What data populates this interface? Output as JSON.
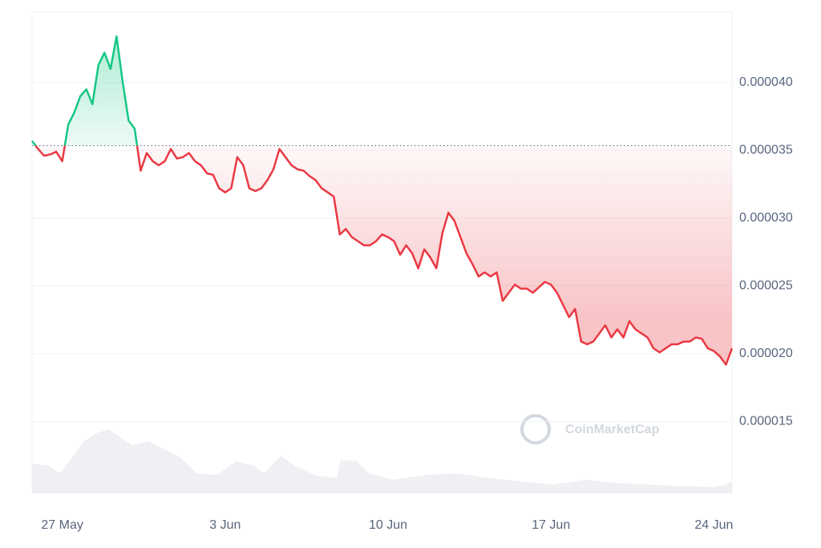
{
  "chart_data": {
    "type": "line",
    "watermark": "CoinMarketCap",
    "categories": [
      null,
      null,
      null,
      null,
      null,
      "27 May",
      null,
      null,
      null,
      null,
      null,
      null,
      null,
      null,
      null,
      null,
      null,
      null,
      null,
      null,
      null,
      null,
      null,
      null,
      null,
      null,
      null,
      null,
      null,
      null,
      null,
      null,
      "3 Jun",
      null,
      null,
      null,
      null,
      null,
      null,
      null,
      null,
      null,
      null,
      null,
      null,
      null,
      null,
      null,
      null,
      null,
      null,
      null,
      null,
      null,
      null,
      null,
      null,
      null,
      null,
      "10 Jun",
      null,
      null,
      null,
      null,
      null,
      null,
      null,
      null,
      null,
      null,
      null,
      null,
      null,
      null,
      null,
      null,
      null,
      null,
      null,
      null,
      null,
      null,
      null,
      null,
      null,
      null,
      "17 Jun",
      null,
      null,
      null,
      null,
      null,
      null,
      null,
      null,
      null,
      null,
      null,
      null,
      null,
      null,
      null,
      null,
      null,
      null,
      null,
      null,
      null,
      null,
      null,
      null,
      null,
      null,
      "24 Jun",
      null,
      null,
      null
    ],
    "values": [
      3.57e-05,
      3.51e-05,
      3.46e-05,
      3.47e-05,
      3.49e-05,
      3.42e-05,
      3.69e-05,
      3.78e-05,
      3.9e-05,
      3.95e-05,
      3.84e-05,
      4.13e-05,
      4.22e-05,
      4.1e-05,
      4.34e-05,
      4.01e-05,
      3.72e-05,
      3.66e-05,
      3.35e-05,
      3.48e-05,
      3.42e-05,
      3.39e-05,
      3.42e-05,
      3.51e-05,
      3.44e-05,
      3.45e-05,
      3.48e-05,
      3.42e-05,
      3.39e-05,
      3.33e-05,
      3.32e-05,
      3.22e-05,
      3.19e-05,
      3.22e-05,
      3.45e-05,
      3.39e-05,
      3.22e-05,
      3.2e-05,
      3.22e-05,
      3.28e-05,
      3.36e-05,
      3.51e-05,
      3.45e-05,
      3.39e-05,
      3.36e-05,
      3.35e-05,
      3.31e-05,
      3.28e-05,
      3.22e-05,
      3.19e-05,
      3.16e-05,
      2.88e-05,
      2.92e-05,
      2.86e-05,
      2.83e-05,
      2.8e-05,
      2.8e-05,
      2.83e-05,
      2.88e-05,
      2.86e-05,
      2.83e-05,
      2.73e-05,
      2.8e-05,
      2.74e-05,
      2.63e-05,
      2.77e-05,
      2.71e-05,
      2.63e-05,
      2.89e-05,
      3.04e-05,
      2.98e-05,
      2.86e-05,
      2.74e-05,
      2.66e-05,
      2.57e-05,
      2.6e-05,
      2.57e-05,
      2.6e-05,
      2.39e-05,
      2.45e-05,
      2.51e-05,
      2.48e-05,
      2.48e-05,
      2.45e-05,
      2.49e-05,
      2.53e-05,
      2.51e-05,
      2.45e-05,
      2.36e-05,
      2.27e-05,
      2.33e-05,
      2.09e-05,
      2.07e-05,
      2.09e-05,
      2.15e-05,
      2.21e-05,
      2.12e-05,
      2.18e-05,
      2.12e-05,
      2.24e-05,
      2.18e-05,
      2.15e-05,
      2.12e-05,
      2.04e-05,
      2.01e-05,
      2.04e-05,
      2.07e-05,
      2.07e-05,
      2.09e-05,
      2.09e-05,
      2.12e-05,
      2.11e-05,
      2.04e-05,
      2.02e-05,
      1.98e-05,
      1.92e-05,
      2.04e-05
    ],
    "reference_line": 3.535e-05,
    "up_color": "#16c784",
    "down_color": "#ea3943",
    "ylim": [
      9.7e-06,
      4.52e-05
    ],
    "yticks": [
      {
        "value": 1.5e-05,
        "label": "0.000015"
      },
      {
        "value": 2e-05,
        "label": "0.000020"
      },
      {
        "value": 2.5e-05,
        "label": "0.000025"
      },
      {
        "value": 3e-05,
        "label": "0.000030"
      },
      {
        "value": 3.5e-05,
        "label": "0.000035"
      },
      {
        "value": 4e-05,
        "label": "0.000040"
      }
    ],
    "grid": true
  }
}
